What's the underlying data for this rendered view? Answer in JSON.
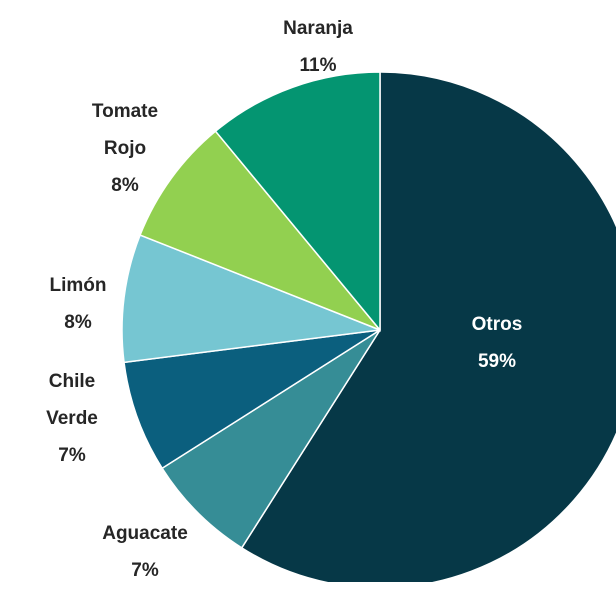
{
  "chart_data": {
    "type": "pie",
    "categories": [
      "Otros",
      "Aguacate",
      "Chile Verde",
      "Limón",
      "Tomate Rojo",
      "Naranja"
    ],
    "values": [
      59,
      7,
      7,
      8,
      8,
      11
    ],
    "value_labels": [
      "59%",
      "7%",
      "7%",
      "8%",
      "8%",
      "11%"
    ],
    "colors": [
      "#063847",
      "#368d96",
      "#0b5f7e",
      "#76c6d2",
      "#92d050",
      "#049571"
    ]
  }
}
